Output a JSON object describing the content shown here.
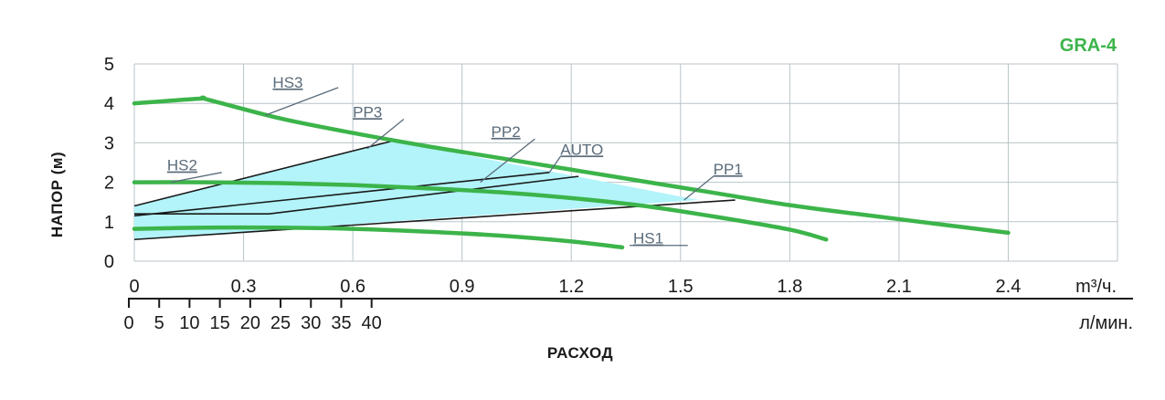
{
  "colors": {
    "curve": "#3cb44a",
    "region_fill": "#b2f4fa",
    "pp_line": "#1a1a1a",
    "grid": "#b8c4c8",
    "label": "#5a6b7a",
    "model": "#3cb44a"
  },
  "chart_data": {
    "type": "line",
    "model": "GRA-4",
    "ylabel": "НАПОР (м)",
    "xlabel": "РАСХОД",
    "ylim": [
      0,
      5
    ],
    "xlim": [
      0,
      2.7
    ],
    "grid": true,
    "y_ticks": [
      "0",
      "1",
      "2",
      "3",
      "4",
      "5"
    ],
    "x_ticks_m3h": [
      "0",
      "0.3",
      "0.6",
      "0.9",
      "1.2",
      "1.5",
      "1.8",
      "2.1",
      "2.4"
    ],
    "x_unit_m3h": "m³/ч.",
    "x_ticks_lmin": [
      "0",
      "5",
      "10",
      "15",
      "20",
      "25",
      "30",
      "35",
      "40"
    ],
    "x_unit_lmin": "л/мин.",
    "region": [
      [
        0,
        0.55
      ],
      [
        0,
        1.4
      ],
      [
        0.71,
        3.05
      ],
      [
        1.55,
        1.55
      ]
    ],
    "series": [
      {
        "name": "HS3",
        "style": "curve",
        "points": [
          [
            0,
            4.0
          ],
          [
            0.18,
            4.12
          ],
          [
            0.2,
            4.1
          ],
          [
            0.4,
            3.62
          ],
          [
            0.6,
            3.25
          ],
          [
            0.8,
            2.92
          ],
          [
            1.0,
            2.62
          ],
          [
            1.2,
            2.32
          ],
          [
            1.4,
            2.02
          ],
          [
            1.6,
            1.72
          ],
          [
            1.8,
            1.42
          ],
          [
            2.0,
            1.18
          ],
          [
            2.2,
            0.95
          ],
          [
            2.4,
            0.72
          ]
        ]
      },
      {
        "name": "HS2",
        "style": "curve",
        "points": [
          [
            0,
            2.0
          ],
          [
            0.2,
            2.0
          ],
          [
            0.4,
            1.98
          ],
          [
            0.6,
            1.93
          ],
          [
            0.8,
            1.85
          ],
          [
            1.0,
            1.75
          ],
          [
            1.2,
            1.6
          ],
          [
            1.4,
            1.4
          ],
          [
            1.6,
            1.12
          ],
          [
            1.8,
            0.8
          ],
          [
            1.9,
            0.55
          ]
        ]
      },
      {
        "name": "HS1",
        "style": "curve",
        "points": [
          [
            0,
            0.82
          ],
          [
            0.2,
            0.85
          ],
          [
            0.4,
            0.85
          ],
          [
            0.6,
            0.82
          ],
          [
            0.8,
            0.75
          ],
          [
            1.0,
            0.65
          ],
          [
            1.2,
            0.5
          ],
          [
            1.34,
            0.35
          ]
        ]
      },
      {
        "name": "PP3",
        "style": "pp",
        "points": [
          [
            0,
            1.4
          ],
          [
            0.71,
            3.05
          ]
        ]
      },
      {
        "name": "PP2",
        "style": "pp",
        "points": [
          [
            0,
            1.15
          ],
          [
            1.14,
            2.25
          ]
        ]
      },
      {
        "name": "AUTO",
        "style": "pp",
        "points": [
          [
            0,
            1.2
          ],
          [
            0.37,
            1.2
          ],
          [
            1.22,
            2.15
          ]
        ]
      },
      {
        "name": "PP1",
        "style": "pp",
        "points": [
          [
            0,
            0.55
          ],
          [
            1.65,
            1.55
          ]
        ]
      }
    ],
    "labels": [
      {
        "name": "HS3",
        "text": "HS3",
        "at": [
          0.38,
          4.4
        ],
        "leader": [
          [
            0.56,
            4.4
          ],
          [
            0.36,
            3.7
          ]
        ]
      },
      {
        "name": "PP3",
        "text": "PP3",
        "at": [
          0.6,
          3.65
        ],
        "leader": [
          [
            0.74,
            3.6
          ],
          [
            0.64,
            2.85
          ]
        ]
      },
      {
        "name": "PP2",
        "text": "PP2",
        "at": [
          0.98,
          3.15
        ],
        "leader": [
          [
            1.1,
            3.1
          ],
          [
            0.95,
            2.0
          ]
        ]
      },
      {
        "name": "AUTO",
        "text": "AUTO",
        "at": [
          1.17,
          2.7
        ],
        "leader": [
          [
            1.17,
            2.65
          ],
          [
            1.14,
            2.25
          ]
        ]
      },
      {
        "name": "PP1",
        "text": "PP1",
        "at": [
          1.59,
          2.2
        ],
        "leader": [
          [
            1.59,
            2.15
          ],
          [
            1.51,
            1.55
          ]
        ]
      },
      {
        "name": "HS2",
        "text": "HS2",
        "at": [
          0.09,
          2.3
        ],
        "leader": [
          [
            0.24,
            2.25
          ],
          [
            0.1,
            2.0
          ]
        ]
      },
      {
        "name": "HS1",
        "text": "HS1",
        "at": [
          1.37,
          0.45
        ],
        "leader": [
          [
            1.52,
            0.4
          ],
          [
            1.36,
            0.4
          ]
        ]
      }
    ]
  }
}
